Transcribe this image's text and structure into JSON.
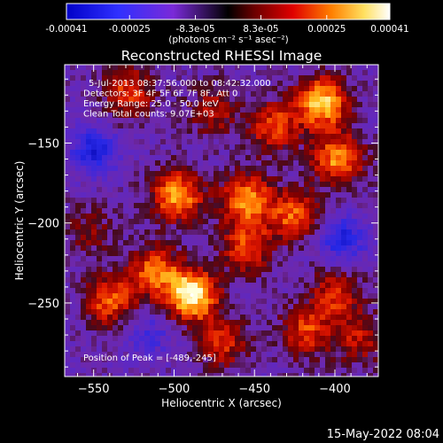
{
  "colorbar": {
    "tick_labels": [
      "-0.00041",
      "-0.00025",
      "-8.3e-05",
      "8.3e-05",
      "0.00025",
      "0.00041"
    ],
    "unit_label": "(photons cm⁻² s⁻¹ asec⁻²)",
    "range": [
      -0.00041,
      0.00041
    ]
  },
  "chart_data": {
    "type": "heatmap",
    "title": "Reconstructed RHESSI Image",
    "xlabel": "Heliocentric X (arcsec)",
    "ylabel": "Heliocentric Y (arcsec)",
    "xlim": [
      -568,
      -373
    ],
    "ylim": [
      -296,
      -101
    ],
    "x_ticks": [
      -550,
      -500,
      -450,
      -400
    ],
    "y_ticks": [
      -150,
      -200,
      -250
    ],
    "x_tick_labels": [
      "−550",
      "−500",
      "−450",
      "−400"
    ],
    "y_tick_labels": [
      "−150",
      "−200",
      "−250"
    ],
    "grid": false,
    "annotations": [
      "5-Jul-2013 08:37:56.000 to 08:42:32.000",
      "Detectors: 3F 4F 5F 6F 7F 8F, Att 0",
      "Energy Range: 25.0 - 50.0 keV",
      "Clean     Total counts: 9.07E+03"
    ],
    "peak_label": "Position of Peak = [-489,-245]",
    "peak": [
      -489,
      -245
    ],
    "sources": [
      {
        "x": -489,
        "y": -245,
        "intensity": 1.0
      },
      {
        "x": -512,
        "y": -230,
        "intensity": 0.6
      },
      {
        "x": -498,
        "y": -183,
        "intensity": 0.75
      },
      {
        "x": -455,
        "y": -185,
        "intensity": 0.7
      },
      {
        "x": -425,
        "y": -195,
        "intensity": 0.6
      },
      {
        "x": -455,
        "y": -215,
        "intensity": 0.55
      },
      {
        "x": -408,
        "y": -125,
        "intensity": 0.85
      },
      {
        "x": -398,
        "y": -160,
        "intensity": 0.7
      },
      {
        "x": -438,
        "y": -140,
        "intensity": 0.55
      },
      {
        "x": -528,
        "y": -118,
        "intensity": 0.5
      },
      {
        "x": -540,
        "y": -248,
        "intensity": 0.6
      },
      {
        "x": -470,
        "y": -275,
        "intensity": 0.45
      },
      {
        "x": -400,
        "y": -245,
        "intensity": 0.45
      },
      {
        "x": -385,
        "y": -272,
        "intensity": 0.4
      },
      {
        "x": -418,
        "y": -268,
        "intensity": 0.5
      },
      {
        "x": -475,
        "y": -130,
        "intensity": 0.35
      },
      {
        "x": -552,
        "y": -205,
        "intensity": 0.25
      }
    ],
    "negative_regions": [
      {
        "x": -550,
        "y": -155,
        "intensity": 0.6
      },
      {
        "x": -395,
        "y": -210,
        "intensity": 0.55
      },
      {
        "x": -515,
        "y": -270,
        "intensity": 0.3
      }
    ]
  },
  "timestamp": "15-May-2022 08:04",
  "colors": {
    "background": "#000000",
    "axis": "#ffffff"
  }
}
